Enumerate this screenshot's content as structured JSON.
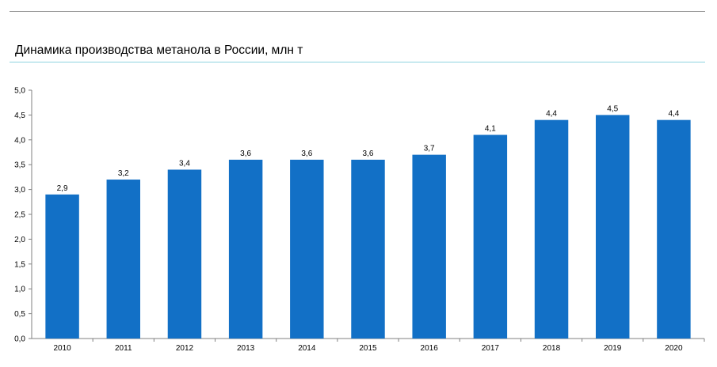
{
  "chart_data": {
    "type": "bar",
    "title": "Динамика производства метанола в России, млн т",
    "categories": [
      "2010",
      "2011",
      "2012",
      "2013",
      "2014",
      "2015",
      "2016",
      "2017",
      "2018",
      "2019",
      "2020"
    ],
    "values": [
      2.9,
      3.2,
      3.4,
      3.6,
      3.6,
      3.6,
      3.7,
      4.1,
      4.4,
      4.5,
      4.4
    ],
    "data_labels": [
      "2,9",
      "3,2",
      "3,4",
      "3,6",
      "3,6",
      "3,6",
      "3,7",
      "4,1",
      "4,4",
      "4,5",
      "4,4"
    ],
    "ylim": [
      0,
      5
    ],
    "yticks": [
      0,
      0.5,
      1,
      1.5,
      2,
      2.5,
      3,
      3.5,
      4,
      4.5,
      5
    ],
    "ytick_labels": [
      "0,0",
      "0,5",
      "1,0",
      "1,5",
      "2,0",
      "2,5",
      "3,0",
      "3,5",
      "4,0",
      "4,5",
      "5,0"
    ],
    "xlabel": "",
    "ylabel": "",
    "grid": false,
    "bar_color": "#1270C6"
  }
}
